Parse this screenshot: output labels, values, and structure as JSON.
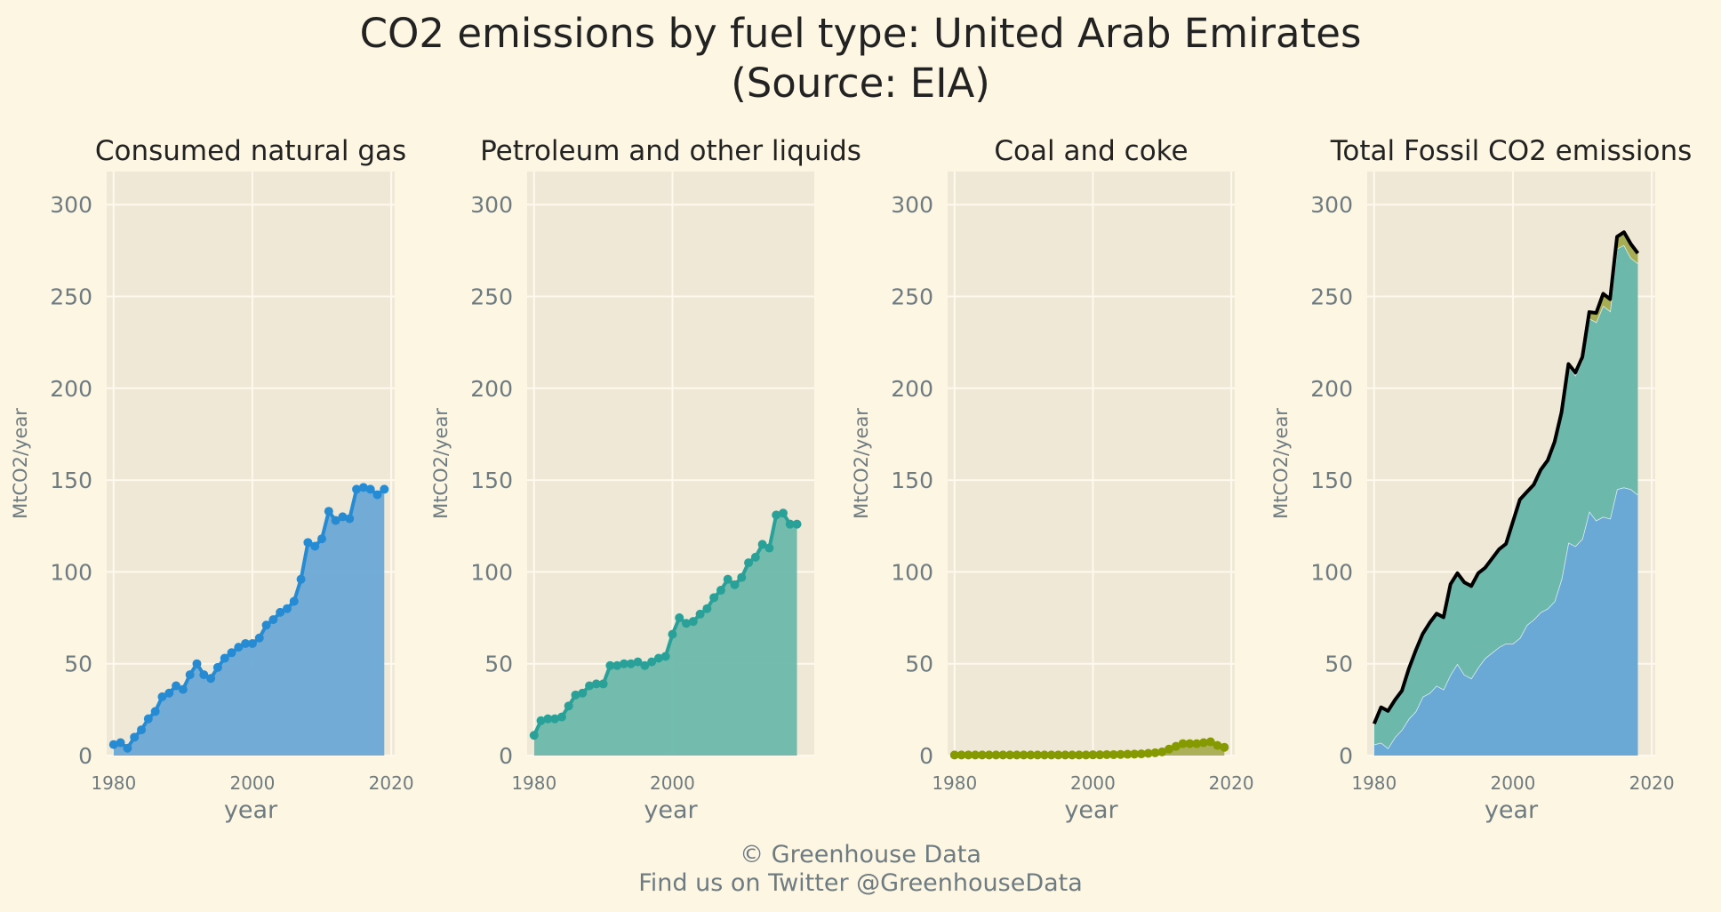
{
  "title": "CO2 emissions by fuel type: United Arab Emirates",
  "subtitle": "(Source: EIA)",
  "footer": {
    "copyright": "© Greenhouse Data",
    "social": "Find us on Twitter @GreenhouseData"
  },
  "colors": {
    "background": "#fdf6e3",
    "panel": "#efe8d6",
    "grid": "#fdf9ee",
    "axis_text": "#6e7b80",
    "gas": "#268bd2",
    "gas_fill": "#6aa9d6",
    "petroleum": "#2aa198",
    "petroleum_fill": "#6cb9ab",
    "coal": "#859900",
    "coal_fill": "#a7ad52",
    "total": "#000000"
  },
  "chart_data": [
    {
      "type": "area",
      "title": "Consumed natural gas",
      "xlabel": "year",
      "ylabel": "MtCO2/year",
      "xlim": [
        1979,
        2020.5
      ],
      "ylim": [
        0,
        318
      ],
      "xticks": [
        1980,
        2000,
        2020
      ],
      "yticks": [
        0,
        50,
        100,
        150,
        200,
        250,
        300
      ],
      "grid": true,
      "markers": true,
      "series": [
        {
          "color_key": "gas",
          "x": [
            1980,
            1981,
            1982,
            1983,
            1984,
            1985,
            1986,
            1987,
            1988,
            1989,
            1990,
            1991,
            1992,
            1993,
            1994,
            1995,
            1996,
            1997,
            1998,
            1999,
            2000,
            2001,
            2002,
            2003,
            2004,
            2005,
            2006,
            2007,
            2008,
            2009,
            2010,
            2011,
            2012,
            2013,
            2014,
            2015,
            2016,
            2017,
            2018,
            2019
          ],
          "values": [
            6,
            7,
            4,
            10,
            14,
            20,
            24,
            32,
            34,
            38,
            36,
            44,
            50,
            44,
            42,
            48,
            53,
            56,
            59,
            61,
            61,
            64,
            71,
            74,
            78,
            80,
            84,
            96,
            116,
            114,
            118,
            133,
            128,
            130,
            129,
            145,
            146,
            145,
            142,
            145
          ]
        }
      ]
    },
    {
      "type": "area",
      "title": "Petroleum and other liquids",
      "xlabel": "year",
      "ylabel": "MtCO2/year",
      "xlim": [
        1979,
        2020.5
      ],
      "ylim": [
        0,
        318
      ],
      "xticks": [
        1980,
        2000
      ],
      "yticks": [
        0,
        50,
        100,
        150,
        200,
        250,
        300
      ],
      "grid": true,
      "markers": true,
      "series": [
        {
          "color_key": "petroleum",
          "x": [
            1980,
            1981,
            1982,
            1983,
            1984,
            1985,
            1986,
            1987,
            1988,
            1989,
            1990,
            1991,
            1992,
            1993,
            1994,
            1995,
            1996,
            1997,
            1998,
            1999,
            2000,
            2001,
            2002,
            2003,
            2004,
            2005,
            2006,
            2007,
            2008,
            2009,
            2010,
            2011,
            2012,
            2013,
            2014,
            2015,
            2016,
            2017,
            2018
          ],
          "values": [
            11,
            19,
            20,
            20,
            21,
            27,
            33,
            34,
            38,
            39,
            39,
            49,
            49,
            50,
            50,
            51,
            49,
            51,
            53,
            54,
            66,
            75,
            72,
            73,
            77,
            80,
            86,
            90,
            96,
            93,
            97,
            105,
            108,
            115,
            113,
            131,
            132,
            126,
            126
          ]
        }
      ]
    },
    {
      "type": "area",
      "title": "Coal and coke",
      "xlabel": "year",
      "ylabel": "MtCO2/year",
      "xlim": [
        1979,
        2020.5
      ],
      "ylim": [
        0,
        318
      ],
      "xticks": [
        1980,
        2000,
        2020
      ],
      "yticks": [
        0,
        50,
        100,
        150,
        200,
        250,
        300
      ],
      "grid": true,
      "markers": true,
      "series": [
        {
          "color_key": "coal",
          "x": [
            1980,
            1981,
            1982,
            1983,
            1984,
            1985,
            1986,
            1987,
            1988,
            1989,
            1990,
            1991,
            1992,
            1993,
            1994,
            1995,
            1996,
            1997,
            1998,
            1999,
            2000,
            2001,
            2002,
            2003,
            2004,
            2005,
            2006,
            2007,
            2008,
            2009,
            2010,
            2011,
            2012,
            2013,
            2014,
            2015,
            2016,
            2017,
            2018,
            2019
          ],
          "values": [
            0.3,
            0.3,
            0.3,
            0.3,
            0.3,
            0.3,
            0.3,
            0.3,
            0.3,
            0.3,
            0.3,
            0.3,
            0.3,
            0.3,
            0.3,
            0.3,
            0.3,
            0.3,
            0.3,
            0.3,
            0.4,
            0.4,
            0.5,
            0.5,
            0.6,
            0.7,
            0.8,
            0.9,
            1.2,
            1.5,
            2.0,
            3.5,
            5.0,
            6.5,
            6.5,
            6.5,
            7.0,
            7.5,
            5.5,
            4.5
          ]
        }
      ]
    },
    {
      "type": "stacked-area",
      "title": "Total Fossil CO2 emissions",
      "xlabel": "year",
      "ylabel": "MtCO2/year",
      "xlim": [
        1979,
        2020.5
      ],
      "ylim": [
        0,
        318
      ],
      "xticks": [
        1980,
        2000,
        2020
      ],
      "yticks": [
        0,
        50,
        100,
        150,
        200,
        250,
        300
      ],
      "grid": true,
      "x": [
        1980,
        1981,
        1982,
        1983,
        1984,
        1985,
        1986,
        1987,
        1988,
        1989,
        1990,
        1991,
        1992,
        1993,
        1994,
        1995,
        1996,
        1997,
        1998,
        1999,
        2000,
        2001,
        2002,
        2003,
        2004,
        2005,
        2006,
        2007,
        2008,
        2009,
        2010,
        2011,
        2012,
        2013,
        2014,
        2015,
        2016,
        2017,
        2018
      ],
      "series": [
        {
          "color_key": "gas",
          "values": [
            6,
            7,
            4,
            10,
            14,
            20,
            24,
            32,
            34,
            38,
            36,
            44,
            50,
            44,
            42,
            48,
            53,
            56,
            59,
            61,
            61,
            64,
            71,
            74,
            78,
            80,
            84,
            96,
            116,
            114,
            118,
            133,
            128,
            130,
            129,
            145,
            146,
            145,
            142
          ]
        },
        {
          "color_key": "petroleum",
          "values": [
            11,
            19,
            20,
            20,
            21,
            27,
            33,
            34,
            38,
            39,
            39,
            49,
            49,
            50,
            50,
            51,
            49,
            51,
            53,
            54,
            66,
            75,
            72,
            73,
            77,
            80,
            86,
            90,
            96,
            93,
            97,
            105,
            108,
            115,
            113,
            131,
            132,
            126,
            126
          ]
        },
        {
          "color_key": "coal",
          "values": [
            0.3,
            0.3,
            0.3,
            0.3,
            0.3,
            0.3,
            0.3,
            0.3,
            0.3,
            0.3,
            0.3,
            0.3,
            0.3,
            0.3,
            0.3,
            0.3,
            0.3,
            0.3,
            0.3,
            0.3,
            0.4,
            0.4,
            0.5,
            0.5,
            0.6,
            0.7,
            0.8,
            0.9,
            1.2,
            1.5,
            2.0,
            3.5,
            5.0,
            6.5,
            6.5,
            6.5,
            7.0,
            7.5,
            5.5
          ]
        }
      ],
      "total_line": true
    }
  ]
}
